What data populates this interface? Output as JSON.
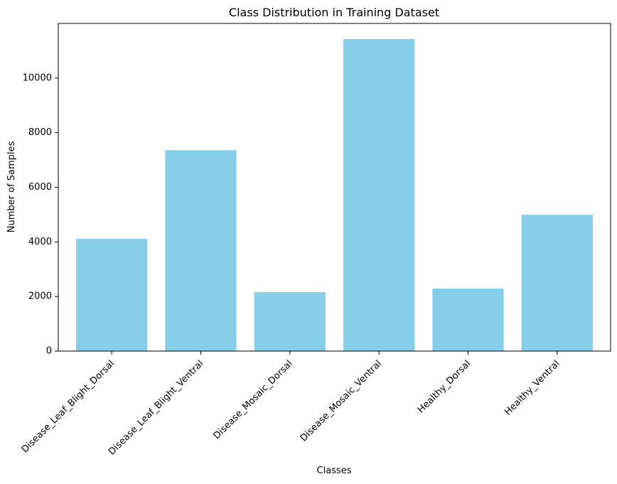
{
  "chart_data": {
    "type": "bar",
    "title": "Class Distribution in Training Dataset",
    "xlabel": "Classes",
    "ylabel": "Number of Samples",
    "categories": [
      "Disease_Leaf_Blight_Dorsal",
      "Disease_Leaf_Blight_Ventral",
      "Disease_Mosaic_Dorsal",
      "Disease_Mosaic_Ventral",
      "Healthy_Dorsal",
      "Healthy_Ventral"
    ],
    "values": [
      4110,
      7360,
      2160,
      11430,
      2290,
      4990
    ],
    "ylim": [
      0,
      12000
    ],
    "yticks": [
      0,
      2000,
      4000,
      6000,
      8000,
      10000
    ],
    "bar_color": "#87CEEB",
    "grid": false,
    "legend": "none"
  }
}
